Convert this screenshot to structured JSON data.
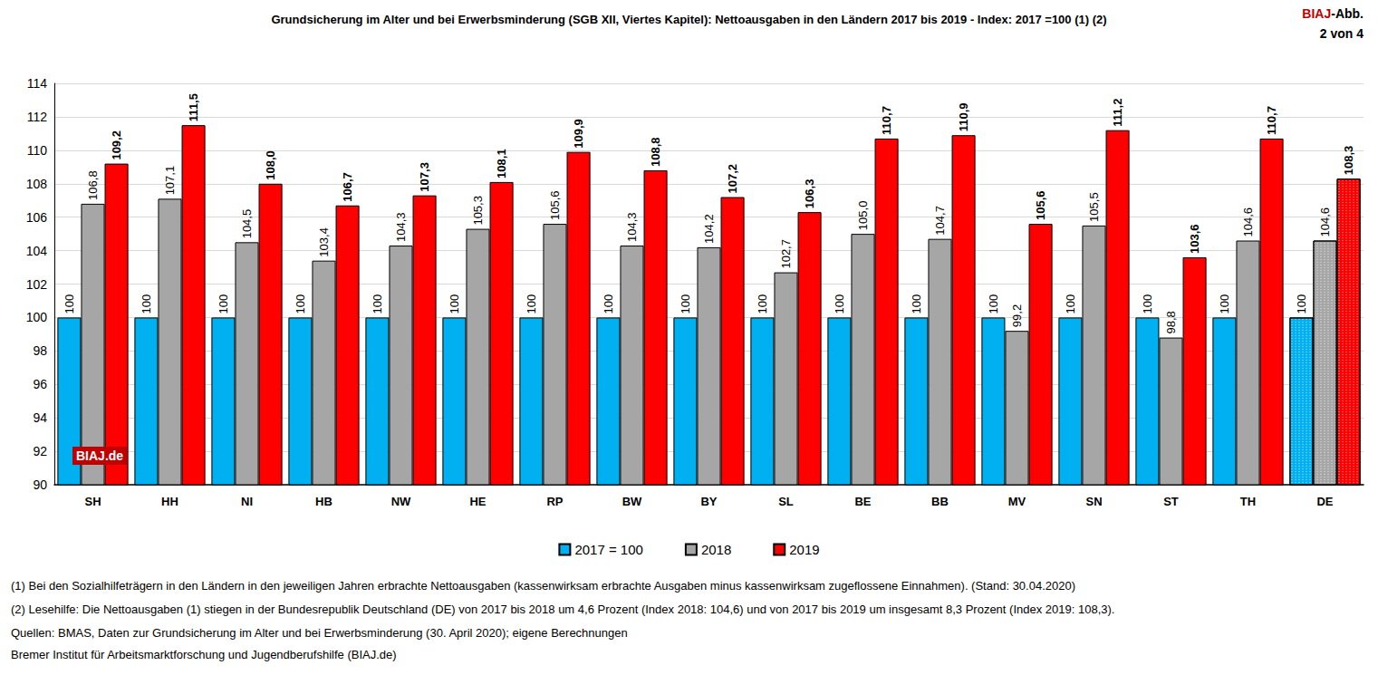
{
  "chart_data": {
    "type": "bar",
    "title": "Grundsicherung im Alter und bei Erwerbsminderung (SGB XII, Viertes Kapitel): Nettoausgaben in den Ländern 2017 bis 2019 - Index: 2017 =100 (1) (2)",
    "categories": [
      "SH",
      "HH",
      "NI",
      "HB",
      "NW",
      "HE",
      "RP",
      "BW",
      "BY",
      "SL",
      "BE",
      "BB",
      "MV",
      "SN",
      "ST",
      "TH",
      "DE"
    ],
    "series": [
      {
        "name": "2017 = 100",
        "color": "#00b0f0",
        "values": [
          100,
          100,
          100,
          100,
          100,
          100,
          100,
          100,
          100,
          100,
          100,
          100,
          100,
          100,
          100,
          100,
          100
        ],
        "value_labels": [
          "100",
          "100",
          "100",
          "100",
          "100",
          "100",
          "100",
          "100",
          "100",
          "100",
          "100",
          "100",
          "100",
          "100",
          "100",
          "100",
          "100"
        ]
      },
      {
        "name": "2018",
        "color": "#a6a6a6",
        "values": [
          106.8,
          107.1,
          104.5,
          103.4,
          104.3,
          105.3,
          105.6,
          104.3,
          104.2,
          102.7,
          105.0,
          104.7,
          99.2,
          105.5,
          98.8,
          104.6,
          104.6
        ],
        "value_labels": [
          "106,8",
          "107,1",
          "104,5",
          "103,4",
          "104,3",
          "105,3",
          "105,6",
          "104,3",
          "104,2",
          "102,7",
          "105,0",
          "104,7",
          "99,2",
          "105,5",
          "98,8",
          "104,6",
          "104,6"
        ]
      },
      {
        "name": "2019",
        "color": "#ff0000",
        "values": [
          109.2,
          111.5,
          108.0,
          106.7,
          107.3,
          108.1,
          109.9,
          108.8,
          107.2,
          106.3,
          110.7,
          110.9,
          105.6,
          111.2,
          103.6,
          110.7,
          108.3
        ],
        "value_labels": [
          "109,2",
          "111,5",
          "108,0",
          "106,7",
          "107,3",
          "108,1",
          "109,9",
          "108,8",
          "107,2",
          "106,3",
          "110,7",
          "110,9",
          "105,6",
          "111,2",
          "103,6",
          "110,7",
          "108,3"
        ]
      }
    ],
    "ylim": [
      90,
      114
    ],
    "yticks": [
      90,
      92,
      94,
      96,
      98,
      100,
      102,
      104,
      106,
      108,
      110,
      112,
      114
    ],
    "grid": true,
    "legend": "bottom",
    "data_labels": true,
    "annotations": [
      "BIAJ-Abb.",
      "2 von 4",
      "BIAJ.de",
      "(1) Bei den Sozialhilfeträgern in den Ländern in den jeweiligen Jahren erbrachte Nettoausgaben (kassenwirksam erbrachte Ausgaben minus kassenwirksam zugeflossene Einnahmen). (Stand: 30.04.2020)",
      "(2) Lesehilfe: Die Nettoausgaben (1) stiegen in der Bundesrepublik Deutschland (DE) von 2017 bis 2018 um 4,6 Prozent (Index 2018: 104,6) und von 2017 bis 2019 um insgesamt 8,3 Prozent (Index 2019: 108,3).",
      "Quellen: BMAS, Daten zur Grundsicherung im Alter und bei Erwerbsminderung (30. April 2020); eigene Berechnungen",
      "Bremer Institut für Arbeitsmarktforschung und Jugendberufshilfe (BIAJ.de)"
    ]
  }
}
